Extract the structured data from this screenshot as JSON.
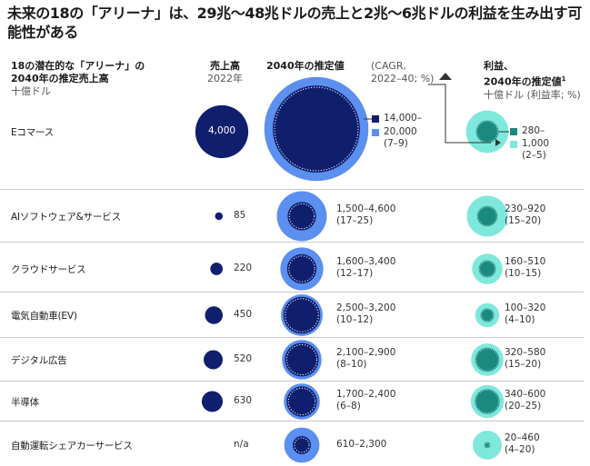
{
  "title": "未来の18の「アリーナ」は、29兆～48兆ドルの売上と2兆～6兆ドルの利益を生み出す可能性がある",
  "headers": {
    "col1_line1": "18の潜在的な「アリーナ」の",
    "col1_line2": "2040年の推定売上高",
    "col1_unit": "十億ドル",
    "sales_title": "売上高",
    "sales_year": "2022年",
    "est_title": "2040年の推定値",
    "cagr_line1": "(CAGR,",
    "cagr_line2": "2022–40; %)",
    "profit_line1": "利益、",
    "profit_line2": "2040年の推定値",
    "profit_sup": "1",
    "profit_unit": "十億ドル (利益率; %)"
  },
  "colors": {
    "navy": "#0f1f6e",
    "blue_light": "#5b8ff0",
    "teal_light": "#7fe8dc",
    "teal_dark": "#1a8a80"
  },
  "chart_data": {
    "type": "table",
    "columns": [
      "アリーナ",
      "売上高 2022年",
      "2040年の推定値 (CAGR, 2022–40; %)",
      "利益、2040年の推定値 (利益率; %)"
    ],
    "rows": [
      {
        "name": "Eコマース",
        "sales_2022": 4000,
        "sales_2022_label": "4,000",
        "rev2040_low": 14000,
        "rev2040_high": 20000,
        "rev_label_low": "14,000–",
        "rev_label_high": "20,000",
        "cagr": "(7–9)",
        "profit_low": 280,
        "profit_high": 1000,
        "profit_label_low": "280–",
        "profit_label_high": "1,000",
        "margin": "(2–5)"
      },
      {
        "name": "AIソフトウェア&サービス",
        "sales_2022": 85,
        "sales_2022_label": "85",
        "rev2040_low": 1500,
        "rev2040_high": 4600,
        "rev_label": "1,500–4,600",
        "cagr": "(17–25)",
        "profit_low": 230,
        "profit_high": 920,
        "profit_label": "230–920",
        "margin": "(15–20)"
      },
      {
        "name": "クラウドサービス",
        "sales_2022": 220,
        "sales_2022_label": "220",
        "rev2040_low": 1600,
        "rev2040_high": 3400,
        "rev_label": "1,600–3,400",
        "cagr": "(12–17)",
        "profit_low": 160,
        "profit_high": 510,
        "profit_label": "160–510",
        "margin": "(10–15)"
      },
      {
        "name": "電気自動車(EV)",
        "sales_2022": 450,
        "sales_2022_label": "450",
        "rev2040_low": 2500,
        "rev2040_high": 3200,
        "rev_label": "2,500–3,200",
        "cagr": "(10–12)",
        "profit_low": 100,
        "profit_high": 320,
        "profit_label": "100–320",
        "margin": "(4–10)"
      },
      {
        "name": "デジタル広告",
        "sales_2022": 520,
        "sales_2022_label": "520",
        "rev2040_low": 2100,
        "rev2040_high": 2900,
        "rev_label": "2,100–2,900",
        "cagr": "(8–10)",
        "profit_low": 320,
        "profit_high": 580,
        "profit_label": "320–580",
        "margin": "(15–20)"
      },
      {
        "name": "半導体",
        "sales_2022": 630,
        "sales_2022_label": "630",
        "rev2040_low": 1700,
        "rev2040_high": 2400,
        "rev_label": "1,700–2,400",
        "cagr": "(6–8)",
        "profit_low": 340,
        "profit_high": 600,
        "profit_label": "340–600",
        "margin": "(20–25)"
      },
      {
        "name": "自動運転シェアカーサービス",
        "sales_2022": null,
        "sales_2022_label": "n/a",
        "rev2040_low": 610,
        "rev2040_high": 2300,
        "rev_label": "610–2,300",
        "cagr": "",
        "profit_low": 20,
        "profit_high": 460,
        "profit_label": "20–460",
        "margin": "(4–20)"
      }
    ]
  }
}
